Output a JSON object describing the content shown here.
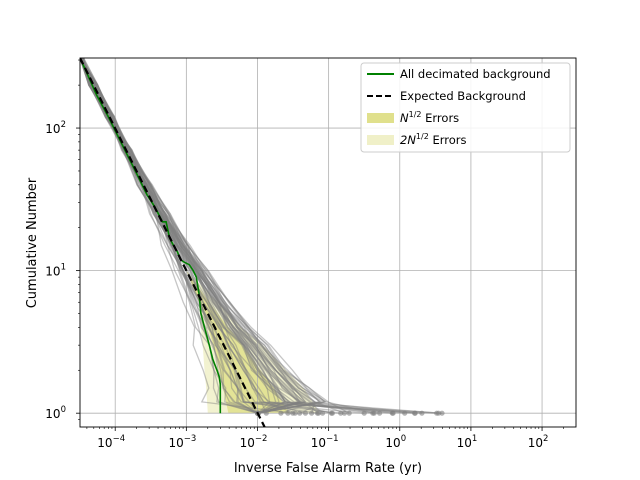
{
  "chart_data": {
    "type": "line",
    "xlabel": "Inverse False Alarm Rate (yr)",
    "ylabel": "Cumulative Number",
    "xscale": "log",
    "yscale": "log",
    "xlim": [
      3.2e-05,
      300
    ],
    "ylim": [
      0.8,
      310
    ],
    "grid": true,
    "legend_position": "top-right",
    "x_ticks": [
      {
        "value": 0.0001,
        "base": "10",
        "exp": "−4"
      },
      {
        "value": 0.001,
        "base": "10",
        "exp": "−3"
      },
      {
        "value": 0.01,
        "base": "10",
        "exp": "−2"
      },
      {
        "value": 0.1,
        "base": "10",
        "exp": "−1"
      },
      {
        "value": 1,
        "base": "10",
        "exp": "0"
      },
      {
        "value": 10,
        "base": "10",
        "exp": "1"
      },
      {
        "value": 100,
        "base": "10",
        "exp": "2"
      }
    ],
    "y_ticks": [
      {
        "value": 1,
        "base": "10",
        "exp": "0"
      },
      {
        "value": 10,
        "base": "10",
        "exp": "1"
      },
      {
        "value": 100,
        "base": "10",
        "exp": "2"
      }
    ],
    "legend": [
      {
        "label": "All decimated background",
        "style": "solid",
        "color": "#008000"
      },
      {
        "label": "Expected Background",
        "style": "dashed",
        "color": "#000000"
      },
      {
        "label_prefix": "N",
        "label_sup": "1/2",
        "label_suffix": " Errors",
        "style": "patch",
        "color": "#e0e08c"
      },
      {
        "label_prefix": "2N",
        "label_sup": "1/2",
        "label_suffix": " Errors",
        "style": "patch",
        "color": "#f0f0c8"
      }
    ],
    "series": [
      {
        "name": "All decimated background",
        "color": "#008000",
        "x": [
          3.2e-05,
          4.2e-05,
          5.5e-05,
          8e-05,
          0.00012,
          0.0002,
          0.00028,
          0.00036,
          0.00046,
          0.00052,
          0.00058,
          0.00066,
          0.00075,
          0.00082,
          0.00092,
          0.0011,
          0.00125,
          0.00138,
          0.0015,
          0.0016,
          0.0018,
          0.0021,
          0.00235,
          0.0025,
          0.0027,
          0.0029,
          0.003,
          0.003
        ],
        "y": [
          310,
          230,
          170,
          120,
          80,
          48,
          34,
          28,
          22,
          22,
          17,
          15,
          13.5,
          12,
          11.5,
          11,
          10,
          9,
          7,
          5,
          4,
          3,
          2.4,
          2.2,
          2,
          1.8,
          1.6,
          1.0
        ]
      },
      {
        "name": "Expected Background",
        "color": "#000000",
        "dashed": true,
        "x": [
          3.2e-05,
          0.0126
        ],
        "y": [
          310,
          0.8
        ]
      }
    ],
    "error_bands": [
      {
        "name": "N^1/2 Errors",
        "color": "#e0e08c",
        "y": [
          300,
          200,
          150,
          100,
          60,
          40,
          25,
          15,
          10,
          6,
          4,
          3,
          2,
          1.5,
          1.0
        ],
        "x_lo": [
          3.3e-05,
          5e-05,
          6.6e-05,
          0.0001,
          0.00017,
          0.00025,
          0.00041,
          0.00069,
          0.001,
          0.0015,
          0.002,
          0.0024,
          0.0029,
          0.0033,
          0.0039
        ],
        "x_hi": [
          3.3e-05,
          5e-05,
          6.6e-05,
          0.0001,
          0.00017,
          0.00025,
          0.00041,
          0.00069,
          0.001,
          0.0021,
          0.0039,
          0.0062,
          0.011,
          0.017,
          0.028
        ]
      },
      {
        "name": "2N^1/2 Errors",
        "color": "#f0f0c8",
        "y": [
          300,
          200,
          150,
          100,
          60,
          40,
          25,
          15,
          10,
          6,
          4,
          3,
          2,
          1.5,
          1.0
        ],
        "x_lo": [
          3.3e-05,
          5e-05,
          6.6e-05,
          0.0001,
          0.00017,
          0.00025,
          0.00041,
          0.00069,
          0.001,
          0.0015,
          0.0016,
          0.0017,
          0.0018,
          0.0019,
          0.002
        ],
        "x_hi": [
          3.3e-05,
          5e-05,
          6.6e-05,
          0.0001,
          0.00017,
          0.00025,
          0.00041,
          0.00069,
          0.001,
          0.0028,
          0.006,
          0.012,
          0.025,
          0.045,
          0.075
        ]
      }
    ],
    "background_realizations": {
      "count": 60,
      "color": "#808080",
      "opacity": 0.45,
      "tail_x_min": 0.001,
      "tail_x_max": 4.0,
      "marker": "o"
    }
  }
}
